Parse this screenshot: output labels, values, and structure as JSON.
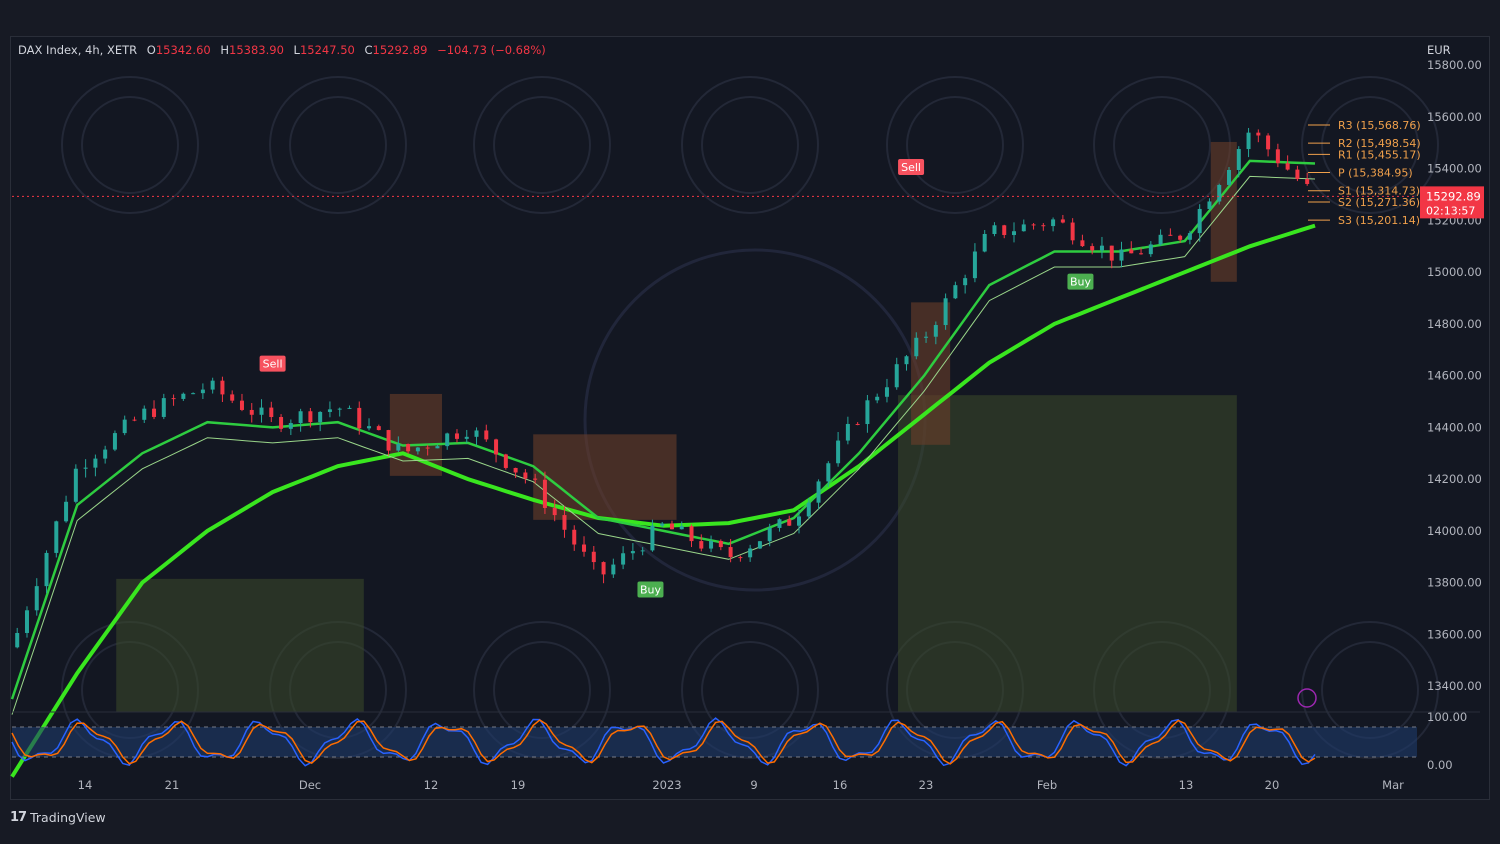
{
  "header": {
    "symbol": "DAX Index, 4h, XETR",
    "open_label": "O",
    "open": "15342.60",
    "high_label": "H",
    "high": "15383.90",
    "low_label": "L",
    "low": "15247.50",
    "close_label": "C",
    "close": "15292.89",
    "change": "−104.73 (−0.68%)"
  },
  "currency": "EUR",
  "last_price": {
    "value": "15292.89",
    "countdown": "02:13:57"
  },
  "footer": {
    "brand": "TradingView",
    "logo_icon": "tradingview-logo-icon"
  },
  "colors": {
    "bull": "#26a69a",
    "bear": "#f23645",
    "ma_fast": "#2ecc40",
    "ma_slow": "#39e61f",
    "pivot": "#f0a04b",
    "buy": "#4caf50",
    "sell": "#f7525f"
  },
  "chart_data": {
    "type": "line",
    "title": "",
    "price_axis": {
      "ylim": [
        13300,
        15820
      ],
      "ticks": [
        "15800.00",
        "15600.00",
        "15400.00",
        "15200.00",
        "15000.00",
        "14800.00",
        "14600.00",
        "14400.00",
        "14200.00",
        "14000.00",
        "13800.00",
        "13600.00",
        "13400.00"
      ]
    },
    "time_axis": {
      "labels": [
        "14",
        "21",
        "Dec",
        "12",
        "19",
        "2023",
        "9",
        "16",
        "23",
        "Feb",
        "13",
        "20",
        "Mar"
      ]
    },
    "oscillator_axis": {
      "ticks": [
        "100.00",
        "0.00"
      ]
    },
    "series": [
      {
        "role": "price",
        "x": [
          0,
          5,
          10,
          15,
          20,
          25,
          30,
          35,
          40,
          45,
          50,
          55,
          60,
          65,
          70,
          75,
          80,
          85,
          90,
          95,
          100
        ],
        "values": [
          13550,
          14250,
          14450,
          14560,
          14420,
          14480,
          14300,
          14400,
          14180,
          13820,
          14020,
          13900,
          14050,
          14450,
          14750,
          15150,
          15200,
          15050,
          15150,
          15550,
          15290
        ]
      },
      {
        "role": "ma-fast",
        "x": [
          0,
          5,
          10,
          15,
          20,
          25,
          30,
          35,
          40,
          45,
          50,
          55,
          60,
          65,
          70,
          75,
          80,
          85,
          90,
          95,
          100
        ],
        "values": [
          13350,
          14100,
          14300,
          14420,
          14400,
          14420,
          14330,
          14340,
          14250,
          14050,
          14000,
          13950,
          14050,
          14300,
          14600,
          14950,
          15080,
          15080,
          15120,
          15430,
          15420
        ]
      },
      {
        "role": "ma-slow",
        "x": [
          0,
          5,
          10,
          15,
          20,
          25,
          30,
          35,
          40,
          45,
          50,
          55,
          60,
          65,
          70,
          75,
          80,
          85,
          90,
          95,
          100
        ],
        "values": [
          13050,
          13450,
          13800,
          14000,
          14150,
          14250,
          14300,
          14200,
          14120,
          14050,
          14020,
          14030,
          14080,
          14250,
          14450,
          14650,
          14800,
          14900,
          15000,
          15100,
          15180
        ]
      }
    ],
    "signals": [
      {
        "label": "Sell",
        "x": 20,
        "price": 14600
      },
      {
        "label": "Buy",
        "x": 49,
        "price": 13820
      },
      {
        "label": "Sell",
        "x": 69,
        "price": 15360
      },
      {
        "label": "Buy",
        "x": 82,
        "price": 15010
      }
    ],
    "pivots": [
      {
        "label": "R3 (15,568.76)",
        "value": 15568.76
      },
      {
        "label": "R2 (15,498.54)",
        "value": 15498.54
      },
      {
        "label": "R1 (15,455.17)",
        "value": 15455.17
      },
      {
        "label": "P (15,384.95)",
        "value": 15384.95
      },
      {
        "label": "S1 (15,314.73)",
        "value": 15314.73
      },
      {
        "label": "S2 (15,271.36)",
        "value": 15271.36
      },
      {
        "label": "S3 (15,201.14)",
        "value": 15201.14
      }
    ],
    "grid": false
  }
}
